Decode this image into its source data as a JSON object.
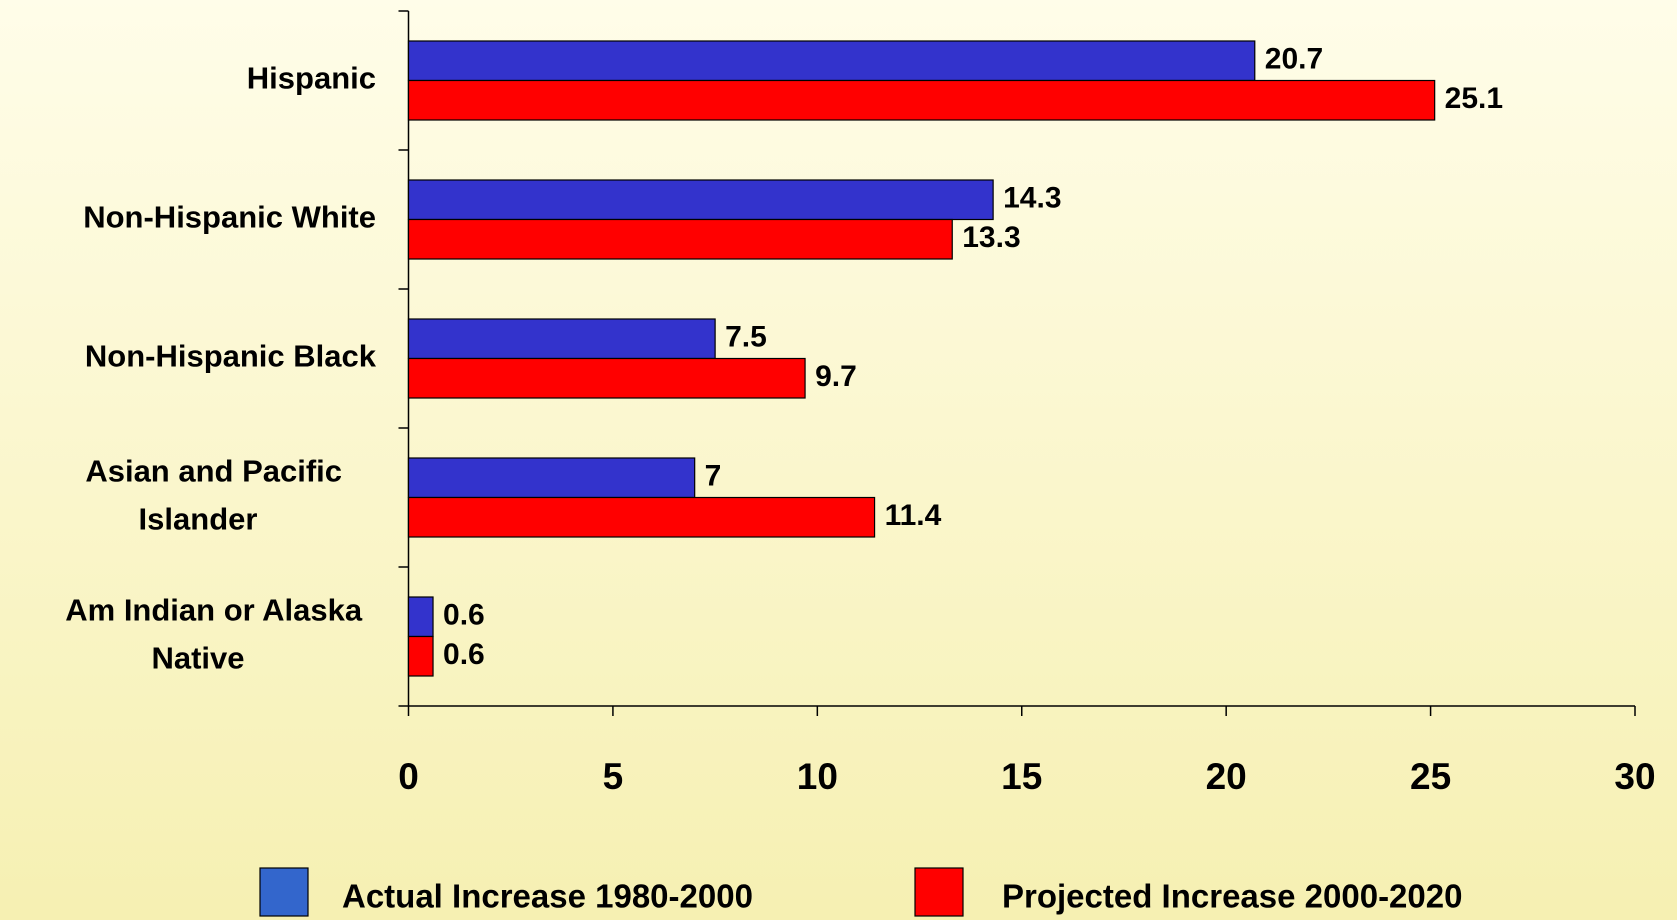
{
  "chart_data": {
    "type": "bar",
    "orientation": "horizontal",
    "categories": [
      "Hispanic",
      "Non-Hispanic White",
      "Non-Hispanic Black",
      "Asian and Pacific Islander",
      "Am Indian or Alaska Native"
    ],
    "series": [
      {
        "name": "Actual Increase 1980-2000",
        "color": "#3333cc",
        "values": [
          20.7,
          14.3,
          7.5,
          7,
          0.6
        ]
      },
      {
        "name": "Projected Increase 2000-2020",
        "color": "#ff0000",
        "values": [
          25.1,
          13.3,
          9.7,
          11.4,
          0.6
        ]
      }
    ],
    "xlim": [
      0,
      30
    ],
    "xticks": [
      0,
      5,
      10,
      15,
      20,
      25,
      30
    ],
    "legend": "bottom"
  }
}
